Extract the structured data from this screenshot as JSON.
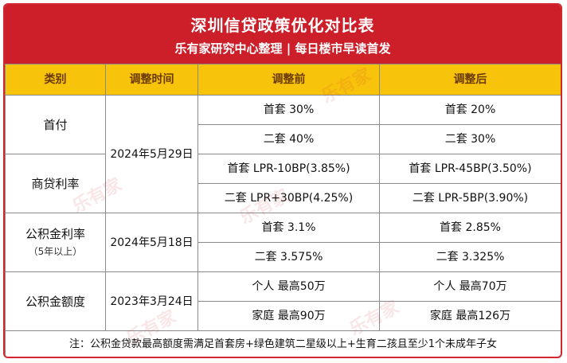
{
  "header": {
    "title": "深圳信贷政策优化对比表",
    "subtitle": "乐有家研究中心整理 | 每日楼市早读首发"
  },
  "table": {
    "columns": [
      "类别",
      "调整时间",
      "调整前",
      "调整后"
    ],
    "groups": [
      {
        "category": "首付",
        "rows": [
          {
            "before": "首套 30%",
            "after": "首套 20%"
          },
          {
            "before": "二套 40%",
            "after": "二套 30%"
          }
        ]
      },
      {
        "category": "商贷利率",
        "rows": [
          {
            "before": "首套 LPR-10BP(3.85%)",
            "after": "首套 LPR-45BP(3.50%)"
          },
          {
            "before": "二套 LPR+30BP(4.25%)",
            "after": "二套 LPR-5BP(3.90%)"
          }
        ]
      },
      {
        "category": "公积金利率",
        "category_sub": "（5年以上）",
        "rows": [
          {
            "before": "首套 3.1%",
            "after": "首套 2.85%"
          },
          {
            "before": "二套 3.575%",
            "after": "二套 3.325%"
          }
        ]
      },
      {
        "category": "公积金额度",
        "rows": [
          {
            "before": "个人 最高50万",
            "after": "个人 最高70万"
          },
          {
            "before": "家庭 最高90万",
            "after": "家庭 最高126万"
          }
        ]
      }
    ],
    "dates": [
      "2024年5月29日",
      "2024年5月18日",
      "2023年3月24日"
    ],
    "note": "注：公积金贷款最高额度需满足首套房+绿色建筑二星级以上+生育二孩且至少1个未成年子女"
  },
  "watermark": "乐有家",
  "colors": {
    "header_bg": "#cc1f2a",
    "column_header_bg": "#f8c30b",
    "column_header_text": "#6a3a06",
    "watermark": "#d23c3c"
  }
}
